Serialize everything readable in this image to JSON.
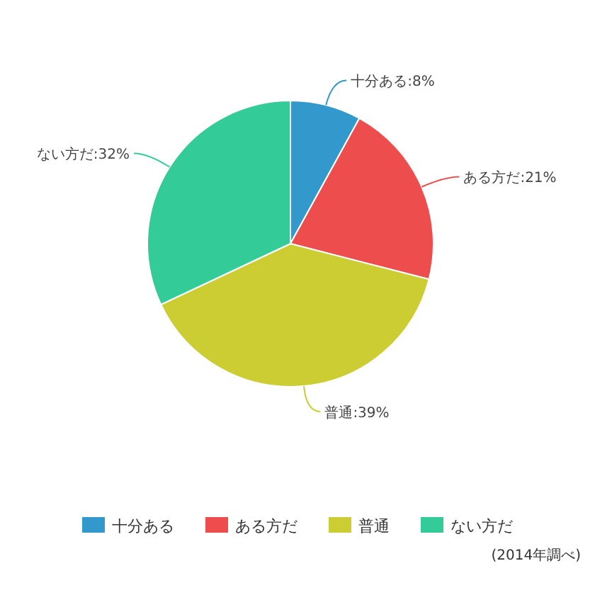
{
  "chart_data": {
    "type": "pie",
    "categories": [
      "十分ある",
      "ある方だ",
      "普通",
      "ない方だ"
    ],
    "values": [
      8,
      21,
      39,
      32
    ],
    "value_labels": [
      "十分ある:8%",
      "ある方だ:21%",
      "普通:39%",
      "ない方だ:32%"
    ],
    "colors": [
      "#3399cc",
      "#ee4d4d",
      "#cccc33",
      "#33cc99"
    ],
    "legend": "bottom",
    "annotations": [
      "(2014年調べ)"
    ]
  }
}
